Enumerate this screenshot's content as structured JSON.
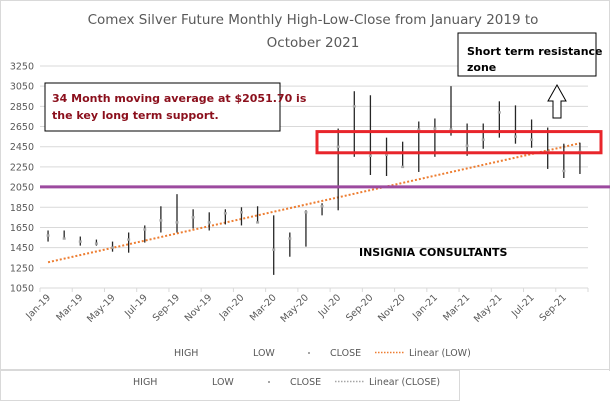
{
  "chart_data": {
    "type": "high-low-close",
    "title_lines": [
      "Comex Silver Future Monthly High-Low-Close from January 2019 to",
      "October 2021"
    ],
    "xlabel": "",
    "ylabel": "",
    "ylim": [
      1050,
      3250
    ],
    "y_ticks": [
      1050,
      1250,
      1450,
      1650,
      1850,
      2050,
      2250,
      2450,
      2650,
      2850,
      3050,
      3250
    ],
    "x_tick_labels": [
      "Jan-19",
      "Mar-19",
      "May-19",
      "Jul-19",
      "Sep-19",
      "Nov-19",
      "Jan-20",
      "Mar-20",
      "May-20",
      "Jul-20",
      "Sep-20",
      "Nov-20",
      "Jan-21",
      "Mar-21",
      "May-21",
      "Jul-21",
      "Sep-21"
    ],
    "grid": true,
    "categories": [
      "Jan-19",
      "Feb-19",
      "Mar-19",
      "Apr-19",
      "May-19",
      "Jun-19",
      "Jul-19",
      "Aug-19",
      "Sep-19",
      "Oct-19",
      "Nov-19",
      "Dec-19",
      "Jan-20",
      "Feb-20",
      "Mar-20",
      "Apr-20",
      "May-20",
      "Jun-20",
      "Jul-20",
      "Aug-20",
      "Sep-20",
      "Oct-20",
      "Nov-20",
      "Dec-20",
      "Jan-21",
      "Feb-21",
      "Mar-21",
      "Apr-21",
      "May-21",
      "Jun-21",
      "Jul-21",
      "Aug-21",
      "Sep-21",
      "Oct-21"
    ],
    "series": [
      {
        "name": "HIGH",
        "values": [
          1620,
          1620,
          1560,
          1530,
          1510,
          1600,
          1670,
          1860,
          1980,
          1830,
          1800,
          1830,
          1850,
          1860,
          1770,
          1600,
          1820,
          1890,
          2630,
          3000,
          2960,
          2540,
          2500,
          2700,
          2730,
          3050,
          2680,
          2680,
          2900,
          2860,
          2720,
          2640,
          2480,
          2490
        ]
      },
      {
        "name": "LOW",
        "values": [
          1510,
          1550,
          1470,
          1470,
          1410,
          1400,
          1500,
          1600,
          1600,
          1640,
          1620,
          1680,
          1670,
          1690,
          1180,
          1360,
          1460,
          1770,
          1820,
          2350,
          2170,
          2160,
          2260,
          2200,
          2350,
          2560,
          2360,
          2430,
          2540,
          2480,
          2440,
          2230,
          2140,
          2180
        ]
      },
      {
        "name": "CLOSE",
        "values": [
          1570,
          1540,
          1510,
          1490,
          1450,
          1530,
          1630,
          1720,
          1700,
          1750,
          1700,
          1790,
          1800,
          1700,
          1430,
          1540,
          1800,
          1860,
          2450,
          2850,
          2360,
          2370,
          2250,
          2620,
          2630,
          2620,
          2460,
          2520,
          2790,
          2550,
          2520,
          2400,
          2210,
          2400
        ]
      },
      {
        "name": "Linear (LOW)",
        "type": "trend-line",
        "start": 1305,
        "end": 2485
      },
      {
        "name": "Linear (CLOSE)",
        "type": "trend-line",
        "start": null,
        "end": null
      }
    ],
    "reference_lines": [
      {
        "name": "34 month moving average",
        "value": 2051.7,
        "color": "#9c4a9f"
      }
    ],
    "resistance_zone": {
      "low": 2390,
      "high": 2600,
      "color": "#e8252b"
    },
    "annotations": [
      {
        "text_lines": [
          "34 Month moving average at $2051.70 is",
          "the key long term support."
        ],
        "color": "#8b0f1c"
      },
      {
        "text_lines": [
          "Short term resistance",
          "zone"
        ],
        "color": "#000000"
      },
      {
        "text": "INSIGNIA CONSULTANTS",
        "color": "#000000"
      }
    ],
    "legends": [
      {
        "placement": "bottom",
        "entries": [
          "HIGH",
          "LOW",
          "CLOSE",
          "Linear (LOW)"
        ]
      },
      {
        "placement": "bottom",
        "entries": [
          "HIGH",
          "LOW",
          "CLOSE",
          "Linear (CLOSE)"
        ]
      }
    ],
    "colors": {
      "bar": "#262626",
      "close_marker": "#a6a6a6",
      "trend_low": "#ed7d31",
      "trend_close": "#a6a6a6",
      "grid": "#d9d9d9",
      "axis_text": "#595959"
    }
  }
}
